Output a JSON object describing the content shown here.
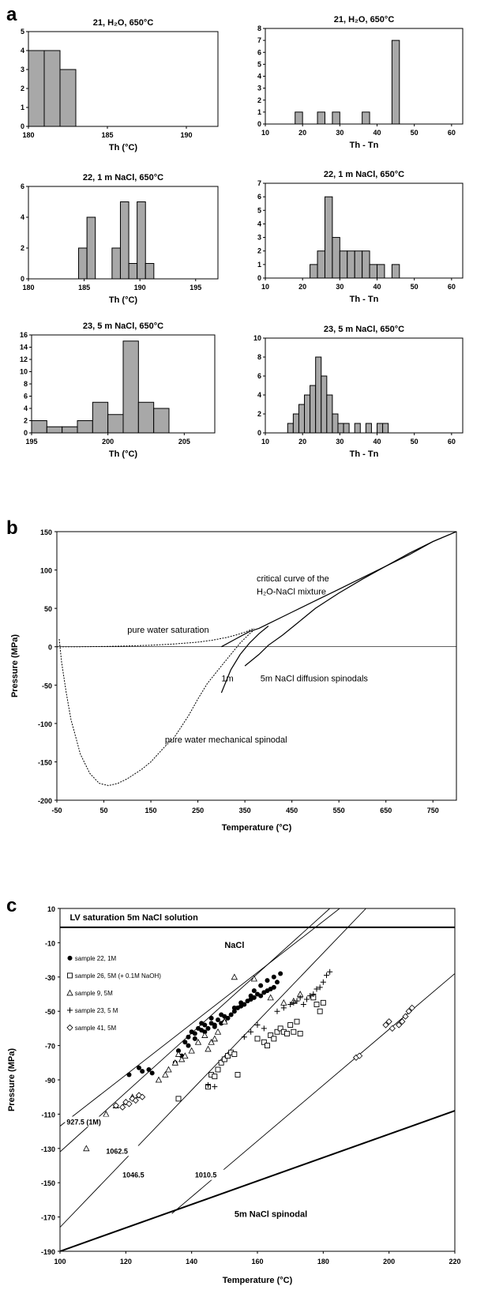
{
  "panels": {
    "a": "a",
    "b": "b",
    "c": "c"
  },
  "hist": [
    {
      "title": "21, H₂O, 650°C",
      "xlabel": "Th (°C)",
      "xlim": [
        180,
        192
      ],
      "xticks": [
        180,
        185,
        190
      ],
      "ylim": [
        0,
        5
      ],
      "yticks": [
        0,
        1,
        2,
        3,
        4,
        5
      ],
      "edges": [
        180,
        181,
        182,
        183
      ],
      "values": [
        4,
        4,
        3
      ]
    },
    {
      "title": "21, H₂O, 650°C",
      "xlabel": "Th - Tn",
      "xlim": [
        10,
        63
      ],
      "xticks": [
        10,
        20,
        30,
        40,
        50,
        60
      ],
      "ylim": [
        0,
        8
      ],
      "yticks": [
        0,
        1,
        2,
        3,
        4,
        5,
        6,
        7,
        8
      ],
      "edges": [
        10,
        12,
        14,
        16,
        18,
        20,
        22,
        24,
        26,
        28,
        30,
        32,
        34,
        36,
        38,
        40,
        42,
        44,
        46,
        48,
        50,
        52,
        54,
        56,
        58,
        60,
        62
      ],
      "values": [
        0,
        0,
        0,
        0,
        1,
        0,
        0,
        1,
        0,
        1,
        0,
        0,
        0,
        1,
        0,
        0,
        0,
        7,
        0,
        0,
        0,
        0,
        0,
        0,
        0,
        0
      ]
    },
    {
      "title": "22, 1 m NaCl, 650°C",
      "xlabel": "Th (°C)",
      "xlim": [
        180,
        197
      ],
      "xticks": [
        180,
        185,
        190,
        195
      ],
      "ylim": [
        0,
        6
      ],
      "yticks": [
        0,
        2,
        4,
        6
      ],
      "edges": [
        180,
        180.75,
        181.5,
        182.25,
        183,
        183.75,
        184.5,
        185.25,
        186,
        186.75,
        187.5,
        188.25,
        189,
        189.75,
        190.5,
        191.25,
        192,
        192.75,
        193.5,
        194.25,
        195,
        195.75,
        196.5
      ],
      "values": [
        0,
        0,
        0,
        0,
        0,
        0,
        2,
        4,
        0,
        0,
        2,
        5,
        1,
        5,
        1,
        0,
        0,
        0,
        0,
        0,
        0,
        0
      ]
    },
    {
      "title": "22, 1 m NaCl, 650°C",
      "xlabel": "Th - Tn",
      "xlim": [
        10,
        63
      ],
      "xticks": [
        10,
        20,
        30,
        40,
        50,
        60
      ],
      "ylim": [
        0,
        7
      ],
      "yticks": [
        0,
        1,
        2,
        3,
        4,
        5,
        6,
        7
      ],
      "edges": [
        10,
        12,
        14,
        16,
        18,
        20,
        22,
        24,
        26,
        28,
        30,
        32,
        34,
        36,
        38,
        40,
        42,
        44,
        46,
        48,
        50,
        52,
        54,
        56,
        58,
        60,
        62
      ],
      "values": [
        0,
        0,
        0,
        0,
        0,
        0,
        1,
        2,
        6,
        3,
        2,
        2,
        2,
        2,
        1,
        1,
        0,
        1,
        0,
        0,
        0,
        0,
        0,
        0,
        0,
        0
      ]
    },
    {
      "title": "23, 5 m NaCl, 650°C",
      "xlabel": "Th (°C)",
      "xlim": [
        195,
        207
      ],
      "xticks": [
        195,
        200,
        205
      ],
      "ylim": [
        0,
        16
      ],
      "yticks": [
        0,
        2,
        4,
        6,
        8,
        10,
        12,
        14,
        16
      ],
      "edges": [
        195,
        196,
        197,
        198,
        199,
        200,
        201,
        202,
        203,
        204
      ],
      "values": [
        2,
        1,
        1,
        2,
        5,
        3,
        15,
        5,
        4,
        1
      ]
    },
    {
      "title": "23, 5 m NaCl, 650°C",
      "xlabel": "Th - Tn",
      "xlim": [
        10,
        63
      ],
      "xticks": [
        10,
        20,
        30,
        40,
        50,
        60
      ],
      "ylim": [
        0,
        10
      ],
      "yticks": [
        0,
        2,
        4,
        6,
        8,
        10
      ],
      "edges": [
        16,
        17.5,
        19,
        20.5,
        22,
        23.5,
        25,
        26.5,
        28,
        29.5,
        31,
        32.5,
        34,
        35.5,
        37,
        38.5,
        40,
        41.5,
        43
      ],
      "values": [
        1,
        2,
        3,
        4,
        5,
        8,
        6,
        4,
        2,
        1,
        1,
        0,
        1,
        0,
        1,
        0,
        1,
        1
      ]
    }
  ],
  "chart_b": {
    "type": "line",
    "xlabel": "Temperature (°C)",
    "ylabel": "Pressure (MPa)",
    "xlim": [
      -50,
      800
    ],
    "ylim": [
      -200,
      150
    ],
    "xticks": [
      -50,
      50,
      150,
      250,
      350,
      450,
      550,
      650,
      750
    ],
    "yticks": [
      -200,
      -150,
      -100,
      -50,
      0,
      50,
      100,
      150
    ],
    "annotations": {
      "critical1": "critical curve of the",
      "critical2": "H₂O-NaCl mixture",
      "saturation": "pure water saturation",
      "one_m": "1m",
      "five_m": "5m NaCl diffusion spinodals",
      "mech": "pure water mechanical spinodal"
    },
    "series": [
      {
        "style": "dotted",
        "x": [
          -50,
          0,
          50,
          100,
          150,
          200,
          250,
          280,
          310,
          330,
          350,
          370
        ],
        "y": [
          0,
          0,
          0.3,
          1,
          2,
          3.6,
          6,
          8.5,
          12,
          15,
          19,
          24
        ]
      },
      {
        "style": "dotted",
        "x": [
          -45,
          -40,
          -30,
          -20,
          0,
          20,
          40,
          60,
          80,
          100,
          130,
          150,
          180,
          200,
          230,
          250,
          270,
          300,
          320,
          340,
          360,
          370
        ],
        "y": [
          10,
          -20,
          -60,
          -95,
          -140,
          -165,
          -178,
          -181,
          -178,
          -172,
          -160,
          -150,
          -130,
          -118,
          -90,
          -68,
          -48,
          -25,
          -10,
          5,
          17,
          22
        ]
      },
      {
        "style": "solid",
        "x": [
          300,
          330,
          360,
          380,
          400,
          450,
          500,
          550,
          600,
          650,
          700,
          750,
          800
        ],
        "y": [
          0,
          10,
          20,
          24,
          30,
          45,
          60,
          75,
          90,
          105,
          120,
          137,
          150
        ]
      },
      {
        "style": "solid",
        "x": [
          300,
          320,
          340,
          360,
          380,
          400
        ],
        "y": [
          -60,
          -30,
          -10,
          5,
          17,
          27
        ]
      },
      {
        "style": "solid",
        "x": [
          350,
          380,
          400,
          430,
          460,
          500,
          550,
          600,
          650,
          700,
          750,
          800
        ],
        "y": [
          -25,
          -10,
          2,
          15,
          30,
          50,
          70,
          88,
          105,
          122,
          137,
          150
        ]
      }
    ]
  },
  "chart_c": {
    "type": "scatter",
    "xlabel": "Temperature (°C)",
    "ylabel": "Pressure (MPa)",
    "xlim": [
      100,
      220
    ],
    "ylim": [
      -190,
      10
    ],
    "xticks": [
      100,
      120,
      140,
      160,
      180,
      200,
      220
    ],
    "yticks": [
      -190,
      -170,
      -150,
      -130,
      -110,
      -90,
      -70,
      -50,
      -30,
      -10,
      10
    ],
    "title_text": "NaCl",
    "labels": {
      "lv": "LV saturation 5m NaCl solution",
      "spinodal": "5m NaCl spinodal",
      "iso1": "927.5 (1M)",
      "iso2": "1062.5",
      "iso3": "1046.5",
      "iso4": "1010.5"
    },
    "legend": [
      {
        "marker": "filled-circle",
        "label": "sample 22, 1M"
      },
      {
        "marker": "open-square",
        "label": "sample 26, 5M (+ 0.1M NaOH)"
      },
      {
        "marker": "open-triangle",
        "label": "sample 9, 5M"
      },
      {
        "marker": "plus",
        "label": "sample 23, 5 M"
      },
      {
        "marker": "open-diamond",
        "label": "sample 41, 5M"
      }
    ],
    "lines": [
      {
        "style": "thick",
        "x": [
          100,
          220
        ],
        "y": [
          -1,
          -1
        ]
      },
      {
        "style": "thick",
        "x": [
          100,
          220
        ],
        "y": [
          -190,
          -108
        ]
      },
      {
        "style": "thin",
        "x": [
          100,
          185
        ],
        "y": [
          -117,
          10
        ]
      },
      {
        "style": "thin",
        "x": [
          100,
          182
        ],
        "y": [
          -132,
          10
        ]
      },
      {
        "style": "thin",
        "x": [
          100,
          193
        ],
        "y": [
          -176,
          10
        ]
      },
      {
        "style": "thin",
        "x": [
          134,
          220
        ],
        "y": [
          -168,
          -28
        ]
      }
    ],
    "series": [
      {
        "name": "sample 22, 1M",
        "marker": "filled-circle",
        "x": [
          121,
          124,
          125,
          127,
          128,
          136,
          138,
          139,
          140,
          141,
          142,
          143,
          144,
          145,
          146,
          147,
          148,
          149,
          150,
          151,
          152,
          153,
          154,
          155,
          156,
          157,
          158,
          159,
          160,
          161,
          162,
          163,
          164,
          165,
          166,
          167,
          137,
          135,
          143,
          146,
          149,
          155,
          159,
          161,
          163,
          165,
          158,
          153,
          150,
          147,
          144,
          141,
          139
        ],
        "y": [
          -87,
          -83,
          -85,
          -84,
          -86,
          -73,
          -68,
          -65,
          -62,
          -63,
          -60,
          -61,
          -58,
          -60,
          -57,
          -59,
          -55,
          -57,
          -56,
          -54,
          -52,
          -50,
          -48,
          -47,
          -46,
          -44,
          -43,
          -42,
          -40,
          -41,
          -39,
          -38,
          -37,
          -36,
          -33,
          -28,
          -76,
          -80,
          -57,
          -54,
          -52,
          -45,
          -38,
          -35,
          -32,
          -30,
          -41,
          -48,
          -53,
          -58,
          -62,
          -66,
          -70
        ]
      },
      {
        "name": "sample 26, 5M (+ 0.1M NaOH)",
        "marker": "open-square",
        "x": [
          136,
          145,
          146,
          147,
          148,
          149,
          150,
          151,
          152,
          153,
          154,
          160,
          162,
          163,
          164,
          165,
          166,
          167,
          168,
          169,
          170,
          171,
          172,
          173,
          177,
          178,
          179,
          180
        ],
        "y": [
          -101,
          -94,
          -87,
          -88,
          -84,
          -80,
          -78,
          -76,
          -74,
          -75,
          -87,
          -66,
          -68,
          -70,
          -64,
          -66,
          -62,
          -60,
          -62,
          -63,
          -58,
          -62,
          -56,
          -63,
          -42,
          -46,
          -50,
          -45
        ]
      },
      {
        "name": "sample 9, 5M",
        "marker": "open-triangle",
        "x": [
          108,
          114,
          117,
          120,
          122,
          124,
          130,
          132,
          133,
          135,
          136,
          137,
          138,
          140,
          142,
          144,
          145,
          146,
          147,
          148,
          150,
          153,
          159,
          164,
          168,
          171,
          173
        ],
        "y": [
          -130,
          -110,
          -105,
          -103,
          -100,
          -99,
          -90,
          -87,
          -84,
          -80,
          -75,
          -78,
          -76,
          -73,
          -68,
          -64,
          -72,
          -68,
          -66,
          -62,
          -56,
          -30,
          -31,
          -42,
          -45,
          -44,
          -40
        ]
      },
      {
        "name": "sample 23, 5 M",
        "marker": "plus",
        "x": [
          145,
          147,
          156,
          158,
          160,
          162,
          166,
          168,
          170,
          171,
          172,
          173,
          174,
          175,
          176,
          177,
          178,
          179,
          180,
          181,
          182
        ],
        "y": [
          -93,
          -94,
          -65,
          -62,
          -58,
          -60,
          -50,
          -48,
          -46,
          -45,
          -44,
          -42,
          -46,
          -43,
          -41,
          -40,
          -37,
          -36,
          -33,
          -29,
          -27
        ]
      },
      {
        "name": "sample 41, 5M",
        "marker": "open-diamond",
        "x": [
          117,
          119,
          120,
          121,
          122,
          123,
          124,
          125,
          190,
          191,
          199,
          200,
          201,
          203,
          204,
          205,
          206,
          207
        ],
        "y": [
          -105,
          -106,
          -103,
          -104,
          -101,
          -102,
          -99,
          -100,
          -77,
          -76,
          -58,
          -56,
          -60,
          -58,
          -56,
          -53,
          -50,
          -48
        ]
      }
    ]
  }
}
